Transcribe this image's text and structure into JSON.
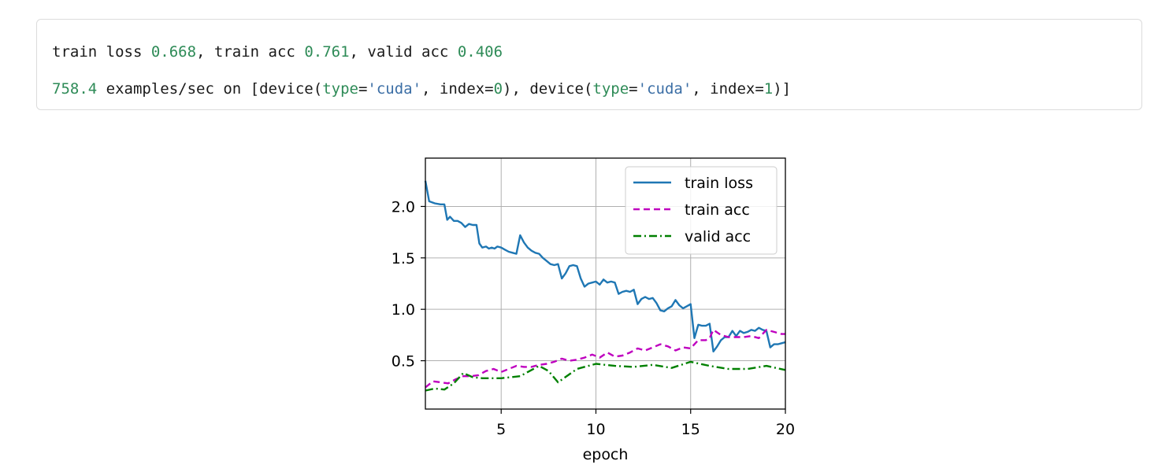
{
  "output": {
    "line1": [
      {
        "text": "train loss ",
        "kind": "plain"
      },
      {
        "text": "0.668",
        "kind": "num"
      },
      {
        "text": ", train acc ",
        "kind": "plain"
      },
      {
        "text": "0.761",
        "kind": "num"
      },
      {
        "text": ", valid acc ",
        "kind": "plain"
      },
      {
        "text": "0.406",
        "kind": "num"
      }
    ],
    "line2": [
      {
        "text": "758.4",
        "kind": "num"
      },
      {
        "text": " examples/sec on [device(",
        "kind": "plain"
      },
      {
        "text": "type",
        "kind": "num"
      },
      {
        "text": "=",
        "kind": "plain"
      },
      {
        "text": "'cuda'",
        "kind": "str"
      },
      {
        "text": ", index=",
        "kind": "plain"
      },
      {
        "text": "0",
        "kind": "num"
      },
      {
        "text": "), device(",
        "kind": "plain"
      },
      {
        "text": "type",
        "kind": "num"
      },
      {
        "text": "=",
        "kind": "plain"
      },
      {
        "text": "'cuda'",
        "kind": "str"
      },
      {
        "text": ", index=",
        "kind": "plain"
      },
      {
        "text": "1",
        "kind": "num"
      },
      {
        "text": ")]",
        "kind": "plain"
      }
    ]
  },
  "chart_data": {
    "type": "line",
    "title": "",
    "xlabel": "epoch",
    "ylabel": "",
    "xlim": [
      1,
      20
    ],
    "ylim": [
      0.03,
      2.47
    ],
    "xticks": [
      5,
      10,
      15,
      20
    ],
    "yticks": [
      0.5,
      1.0,
      1.5,
      2.0
    ],
    "grid": true,
    "legend_position": "top-right",
    "series": [
      {
        "name": "train loss",
        "color": "#1f77b4",
        "style": "solid",
        "points": [
          [
            1.0,
            2.25
          ],
          [
            1.2,
            2.05
          ],
          [
            1.5,
            2.03
          ],
          [
            1.8,
            2.02
          ],
          [
            2.0,
            2.02
          ],
          [
            2.15,
            1.87
          ],
          [
            2.3,
            1.9
          ],
          [
            2.5,
            1.86
          ],
          [
            2.7,
            1.86
          ],
          [
            2.9,
            1.84
          ],
          [
            3.1,
            1.8
          ],
          [
            3.3,
            1.83
          ],
          [
            3.5,
            1.82
          ],
          [
            3.7,
            1.82
          ],
          [
            3.85,
            1.64
          ],
          [
            4.0,
            1.6
          ],
          [
            4.2,
            1.61
          ],
          [
            4.35,
            1.59
          ],
          [
            4.5,
            1.6
          ],
          [
            4.65,
            1.59
          ],
          [
            4.8,
            1.61
          ],
          [
            5.0,
            1.6
          ],
          [
            5.2,
            1.58
          ],
          [
            5.4,
            1.56
          ],
          [
            5.6,
            1.55
          ],
          [
            5.8,
            1.54
          ],
          [
            6.0,
            1.72
          ],
          [
            6.2,
            1.65
          ],
          [
            6.4,
            1.6
          ],
          [
            6.6,
            1.57
          ],
          [
            6.8,
            1.55
          ],
          [
            7.0,
            1.54
          ],
          [
            7.2,
            1.5
          ],
          [
            7.4,
            1.47
          ],
          [
            7.6,
            1.44
          ],
          [
            7.8,
            1.43
          ],
          [
            8.0,
            1.44
          ],
          [
            8.2,
            1.3
          ],
          [
            8.4,
            1.35
          ],
          [
            8.6,
            1.42
          ],
          [
            8.8,
            1.43
          ],
          [
            9.0,
            1.42
          ],
          [
            9.2,
            1.3
          ],
          [
            9.4,
            1.22
          ],
          [
            9.6,
            1.25
          ],
          [
            9.8,
            1.26
          ],
          [
            10.0,
            1.27
          ],
          [
            10.2,
            1.24
          ],
          [
            10.4,
            1.29
          ],
          [
            10.6,
            1.26
          ],
          [
            10.8,
            1.27
          ],
          [
            11.0,
            1.26
          ],
          [
            11.2,
            1.15
          ],
          [
            11.4,
            1.17
          ],
          [
            11.6,
            1.18
          ],
          [
            11.8,
            1.17
          ],
          [
            12.0,
            1.19
          ],
          [
            12.2,
            1.05
          ],
          [
            12.4,
            1.1
          ],
          [
            12.6,
            1.12
          ],
          [
            12.8,
            1.1
          ],
          [
            13.0,
            1.11
          ],
          [
            13.2,
            1.06
          ],
          [
            13.4,
            0.99
          ],
          [
            13.6,
            0.98
          ],
          [
            13.8,
            1.01
          ],
          [
            14.0,
            1.03
          ],
          [
            14.2,
            1.09
          ],
          [
            14.4,
            1.04
          ],
          [
            14.6,
            1.01
          ],
          [
            14.8,
            1.03
          ],
          [
            15.0,
            1.05
          ],
          [
            15.2,
            0.72
          ],
          [
            15.4,
            0.85
          ],
          [
            15.6,
            0.84
          ],
          [
            15.8,
            0.84
          ],
          [
            16.0,
            0.86
          ],
          [
            16.2,
            0.59
          ],
          [
            16.4,
            0.64
          ],
          [
            16.6,
            0.7
          ],
          [
            16.8,
            0.73
          ],
          [
            17.0,
            0.73
          ],
          [
            17.2,
            0.79
          ],
          [
            17.4,
            0.74
          ],
          [
            17.6,
            0.79
          ],
          [
            17.8,
            0.77
          ],
          [
            18.0,
            0.78
          ],
          [
            18.2,
            0.8
          ],
          [
            18.4,
            0.79
          ],
          [
            18.6,
            0.82
          ],
          [
            18.8,
            0.8
          ],
          [
            19.0,
            0.79
          ],
          [
            19.2,
            0.63
          ],
          [
            19.4,
            0.66
          ],
          [
            19.6,
            0.66
          ],
          [
            19.8,
            0.67
          ],
          [
            20.0,
            0.68
          ]
        ]
      },
      {
        "name": "train acc",
        "color": "#bf00bf",
        "style": "dashed",
        "points": [
          [
            1.0,
            0.24
          ],
          [
            1.4,
            0.3
          ],
          [
            1.8,
            0.29
          ],
          [
            2.2,
            0.28
          ],
          [
            2.6,
            0.32
          ],
          [
            3.0,
            0.35
          ],
          [
            3.4,
            0.35
          ],
          [
            3.8,
            0.36
          ],
          [
            4.2,
            0.4
          ],
          [
            4.6,
            0.42
          ],
          [
            5.0,
            0.39
          ],
          [
            5.4,
            0.42
          ],
          [
            5.8,
            0.45
          ],
          [
            6.2,
            0.44
          ],
          [
            6.6,
            0.44
          ],
          [
            7.0,
            0.46
          ],
          [
            7.4,
            0.47
          ],
          [
            7.8,
            0.49
          ],
          [
            8.2,
            0.52
          ],
          [
            8.6,
            0.5
          ],
          [
            9.0,
            0.51
          ],
          [
            9.4,
            0.53
          ],
          [
            9.8,
            0.56
          ],
          [
            10.2,
            0.53
          ],
          [
            10.6,
            0.58
          ],
          [
            11.0,
            0.54
          ],
          [
            11.4,
            0.55
          ],
          [
            11.8,
            0.58
          ],
          [
            12.2,
            0.62
          ],
          [
            12.6,
            0.6
          ],
          [
            13.0,
            0.63
          ],
          [
            13.4,
            0.66
          ],
          [
            13.8,
            0.64
          ],
          [
            14.2,
            0.6
          ],
          [
            14.6,
            0.63
          ],
          [
            15.0,
            0.62
          ],
          [
            15.4,
            0.7
          ],
          [
            15.8,
            0.7
          ],
          [
            16.0,
            0.72
          ],
          [
            16.2,
            0.8
          ],
          [
            16.6,
            0.75
          ],
          [
            17.0,
            0.73
          ],
          [
            17.4,
            0.73
          ],
          [
            17.8,
            0.73
          ],
          [
            18.2,
            0.74
          ],
          [
            18.6,
            0.72
          ],
          [
            19.0,
            0.8
          ],
          [
            19.4,
            0.78
          ],
          [
            19.8,
            0.76
          ],
          [
            20.0,
            0.76
          ]
        ]
      },
      {
        "name": "valid acc",
        "color": "#008000",
        "style": "dashdot",
        "points": [
          [
            1.0,
            0.21
          ],
          [
            1.5,
            0.23
          ],
          [
            2.0,
            0.22
          ],
          [
            2.5,
            0.28
          ],
          [
            3.0,
            0.38
          ],
          [
            3.5,
            0.34
          ],
          [
            4.0,
            0.33
          ],
          [
            5.0,
            0.33
          ],
          [
            6.0,
            0.35
          ],
          [
            7.0,
            0.45
          ],
          [
            7.5,
            0.4
          ],
          [
            8.0,
            0.29
          ],
          [
            9.0,
            0.42
          ],
          [
            10.0,
            0.47
          ],
          [
            11.0,
            0.45
          ],
          [
            12.0,
            0.44
          ],
          [
            13.0,
            0.46
          ],
          [
            14.0,
            0.43
          ],
          [
            15.0,
            0.49
          ],
          [
            16.0,
            0.45
          ],
          [
            17.0,
            0.42
          ],
          [
            18.0,
            0.42
          ],
          [
            19.0,
            0.45
          ],
          [
            20.0,
            0.41
          ]
        ]
      }
    ]
  }
}
